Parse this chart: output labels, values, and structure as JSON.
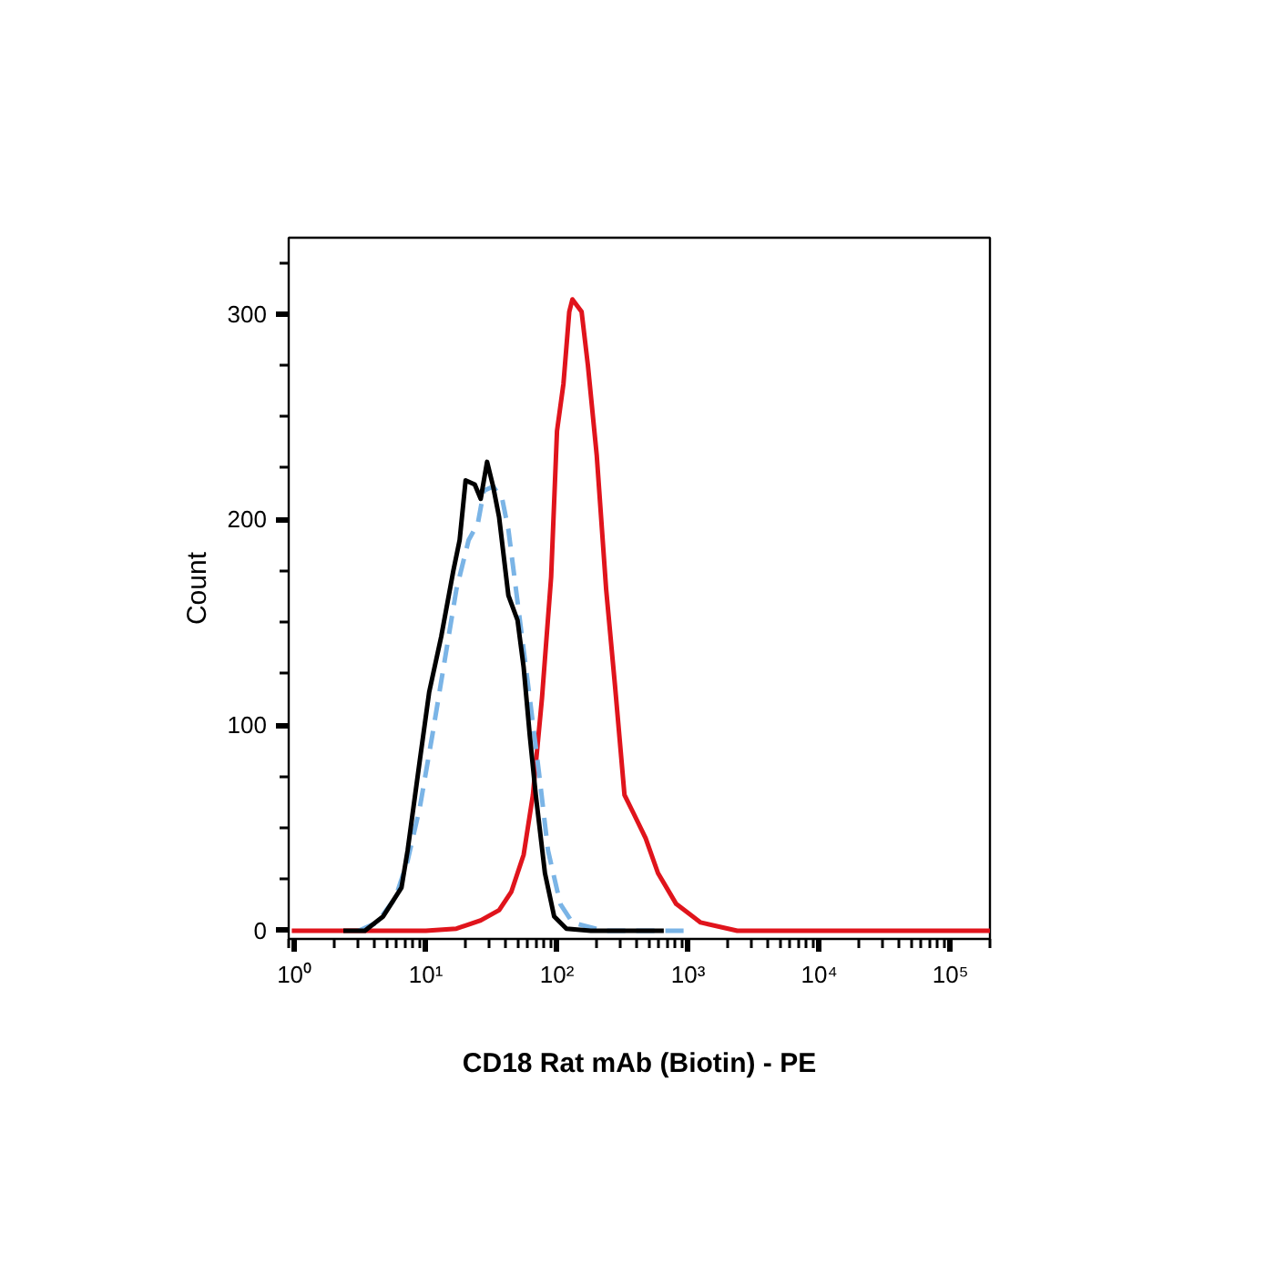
{
  "chart_data": {
    "type": "line",
    "xlabel": "CD18 Rat mAb (Biotin) - PE",
    "ylabel": "Count",
    "log": "x",
    "xlim": [
      0.9,
      200000
    ],
    "ylim": [
      -4,
      337
    ],
    "xticks": [
      {
        "value": 1,
        "label": "10⁰"
      },
      {
        "value": 10,
        "label": "10¹"
      },
      {
        "value": 100,
        "label": "10²"
      },
      {
        "value": 1000,
        "label": "10³"
      },
      {
        "value": 10000,
        "label": "10⁴"
      },
      {
        "value": 100000,
        "label": "10⁵"
      }
    ],
    "yticks": [
      0,
      100,
      200,
      300
    ],
    "grid": false,
    "series": [
      {
        "color": "#e0141c",
        "line_style": "solid",
        "x": [
          0.95,
          10.0,
          17.1,
          26.2,
          36.2,
          44.9,
          55.7,
          65.5,
          76.8,
          90.2,
          100,
          112,
          124,
          131,
          154,
          172,
          201,
          237,
          277,
          327,
          384,
          474,
          589,
          811,
          1245,
          2366,
          2950,
          200000
        ],
        "values": [
          0,
          0,
          1,
          5,
          10,
          19,
          37,
          66,
          113,
          172,
          243,
          266,
          301,
          307,
          301,
          275,
          231,
          166,
          119,
          66,
          57,
          45,
          28,
          13,
          4,
          0,
          0,
          0
        ]
      },
      {
        "color": "#7ab4e6",
        "line_style": "dashed",
        "x": [
          3.08,
          4.25,
          5.86,
          7.26,
          9.0,
          11.2,
          13.8,
          17.1,
          21.2,
          24.9,
          27.7,
          32.6,
          38.2,
          42.6,
          50,
          62,
          72.8,
          85.4,
          106,
          131,
          224,
          426,
          1007
        ],
        "values": [
          0,
          4,
          16,
          34,
          60,
          95,
          130,
          166,
          190,
          198,
          214,
          216,
          210,
          195,
          160,
          113,
          77,
          39,
          13,
          4,
          0,
          0,
          0
        ]
      },
      {
        "color": "#000000",
        "line_style": "solid",
        "x": [
          2.35,
          3.43,
          4.73,
          6.52,
          7.26,
          9.0,
          10.6,
          13.1,
          16.2,
          18.1,
          20.1,
          23.6,
          26.2,
          29.3,
          32.6,
          36.2,
          42.6,
          50.0,
          55.7,
          62.0,
          68.9,
          80.9,
          95.1,
          118,
          181,
          277,
          652
        ],
        "values": [
          0,
          0,
          7,
          21,
          39,
          83,
          116,
          143,
          175,
          190,
          219,
          217,
          210,
          228,
          216,
          201,
          163,
          151,
          128,
          95,
          66,
          28,
          7,
          1,
          0,
          0,
          0
        ]
      }
    ],
    "marker": "none"
  }
}
